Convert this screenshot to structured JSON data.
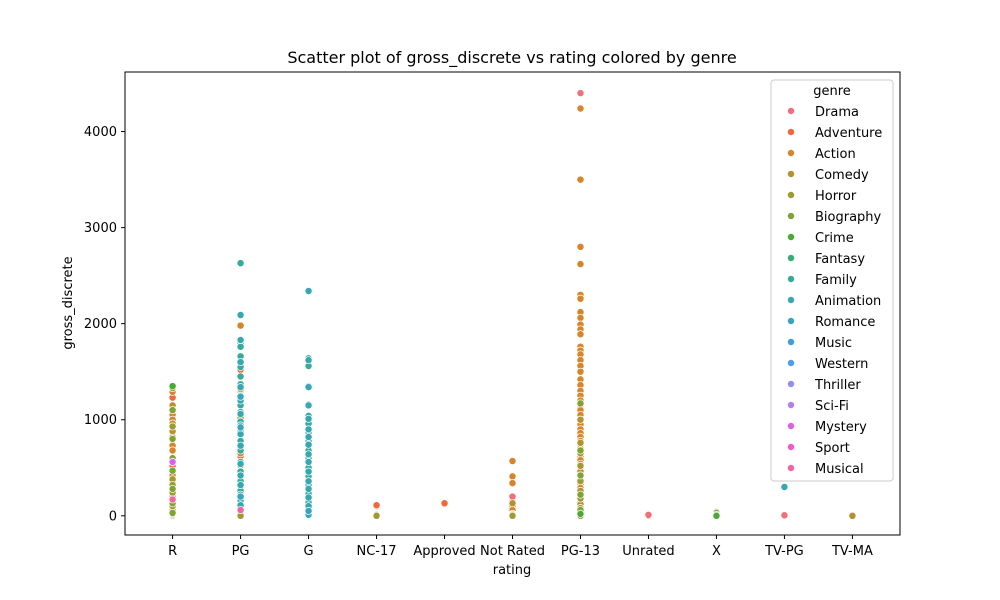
{
  "chart_data": {
    "type": "scatter",
    "title": "Scatter plot of gross_discrete vs rating colored by genre",
    "xlabel": "rating",
    "ylabel": "gross_discrete",
    "x_categories": [
      "R",
      "PG",
      "G",
      "NC-17",
      "Approved",
      "Not Rated",
      "PG-13",
      "Unrated",
      "X",
      "TV-PG",
      "TV-MA"
    ],
    "y_ticks": [
      0,
      1000,
      2000,
      3000,
      4000
    ],
    "ylim": [
      -200,
      4620
    ],
    "grid": false,
    "legend": {
      "title": "genre",
      "placement": "top-right",
      "entries": [
        {
          "name": "Drama",
          "color": "#f0707a"
        },
        {
          "name": "Adventure",
          "color": "#f0673d"
        },
        {
          "name": "Action",
          "color": "#d7842a"
        },
        {
          "name": "Comedy",
          "color": "#b6912d"
        },
        {
          "name": "Horror",
          "color": "#a09a31"
        },
        {
          "name": "Biography",
          "color": "#7ea432"
        },
        {
          "name": "Crime",
          "color": "#4aa935"
        },
        {
          "name": "Fantasy",
          "color": "#35ad77"
        },
        {
          "name": "Family",
          "color": "#36ab9b"
        },
        {
          "name": "Animation",
          "color": "#37a8b2"
        },
        {
          "name": "Romance",
          "color": "#39a4c0"
        },
        {
          "name": "Music",
          "color": "#3ca0d4"
        },
        {
          "name": "Western",
          "color": "#4e9df0"
        },
        {
          "name": "Thriller",
          "color": "#8f91ed"
        },
        {
          "name": "Sci-Fi",
          "color": "#b67ff0"
        },
        {
          "name": "Mystery",
          "color": "#dd60ec"
        },
        {
          "name": "Sport",
          "color": "#ee5acb"
        },
        {
          "name": "Musical",
          "color": "#f165a5"
        }
      ]
    },
    "series": [
      {
        "genre": "Drama",
        "points": [
          [
            "R",
            180
          ],
          [
            "R",
            600
          ],
          [
            "R",
            520
          ],
          [
            "R",
            440
          ],
          [
            "R",
            60
          ],
          [
            "PG",
            780
          ],
          [
            "PG",
            40
          ],
          [
            "PG",
            1380
          ],
          [
            "PG",
            700
          ],
          [
            "G",
            20
          ],
          [
            "NC-17",
            100
          ],
          [
            "Not Rated",
            150
          ],
          [
            "Not Rated",
            200
          ],
          [
            "PG-13",
            4400
          ],
          [
            "PG-13",
            840
          ],
          [
            "PG-13",
            400
          ],
          [
            "Unrated",
            0
          ],
          [
            "Unrated",
            10
          ],
          [
            "TV-PG",
            0
          ],
          [
            "TV-PG",
            5
          ]
        ]
      },
      {
        "genre": "Adventure",
        "points": [
          [
            "R",
            1230
          ],
          [
            "R",
            790
          ],
          [
            "R",
            520
          ],
          [
            "R",
            0
          ],
          [
            "PG",
            1330
          ],
          [
            "PG",
            1520
          ],
          [
            "PG",
            1300
          ],
          [
            "PG",
            620
          ],
          [
            "PG",
            450
          ],
          [
            "PG",
            300
          ],
          [
            "PG",
            150
          ],
          [
            "G",
            40
          ],
          [
            "NC-17",
            110
          ],
          [
            "Approved",
            130
          ],
          [
            "Not Rated",
            100
          ],
          [
            "PG-13",
            840
          ],
          [
            "PG-13",
            190
          ],
          [
            "PG-13",
            50
          ]
        ]
      },
      {
        "genre": "Action",
        "points": [
          [
            "R",
            1290
          ],
          [
            "R",
            1050
          ],
          [
            "R",
            1000
          ],
          [
            "R",
            820
          ],
          [
            "R",
            730
          ],
          [
            "R",
            680
          ],
          [
            "R",
            560
          ],
          [
            "R",
            420
          ],
          [
            "R",
            300
          ],
          [
            "R",
            250
          ],
          [
            "R",
            120
          ],
          [
            "R",
            40
          ],
          [
            "PG",
            1980
          ],
          [
            "PG",
            1320
          ],
          [
            "PG",
            1050
          ],
          [
            "PG",
            840
          ],
          [
            "PG",
            650
          ],
          [
            "PG",
            400
          ],
          [
            "PG",
            260
          ],
          [
            "G",
            40
          ],
          [
            "Not Rated",
            570
          ],
          [
            "Not Rated",
            410
          ],
          [
            "Not Rated",
            340
          ],
          [
            "Not Rated",
            60
          ],
          [
            "PG-13",
            4240
          ],
          [
            "PG-13",
            3500
          ],
          [
            "PG-13",
            2800
          ],
          [
            "PG-13",
            2620
          ],
          [
            "PG-13",
            2300
          ],
          [
            "PG-13",
            2260
          ],
          [
            "PG-13",
            2120
          ],
          [
            "PG-13",
            2060
          ],
          [
            "PG-13",
            1990
          ],
          [
            "PG-13",
            1940
          ],
          [
            "PG-13",
            1890
          ],
          [
            "PG-13",
            1760
          ],
          [
            "PG-13",
            1720
          ],
          [
            "PG-13",
            1680
          ],
          [
            "PG-13",
            1620
          ],
          [
            "PG-13",
            1560
          ],
          [
            "PG-13",
            1500
          ],
          [
            "PG-13",
            1420
          ],
          [
            "PG-13",
            1360
          ],
          [
            "PG-13",
            1300
          ],
          [
            "PG-13",
            1250
          ],
          [
            "PG-13",
            1200
          ],
          [
            "PG-13",
            1150
          ],
          [
            "PG-13",
            1100
          ],
          [
            "PG-13",
            1050
          ],
          [
            "PG-13",
            1000
          ],
          [
            "PG-13",
            950
          ],
          [
            "PG-13",
            900
          ],
          [
            "PG-13",
            860
          ],
          [
            "PG-13",
            820
          ],
          [
            "PG-13",
            780
          ],
          [
            "PG-13",
            740
          ],
          [
            "PG-13",
            700
          ],
          [
            "PG-13",
            660
          ],
          [
            "PG-13",
            620
          ],
          [
            "PG-13",
            580
          ],
          [
            "PG-13",
            540
          ],
          [
            "PG-13",
            500
          ],
          [
            "PG-13",
            460
          ],
          [
            "PG-13",
            420
          ],
          [
            "PG-13",
            380
          ],
          [
            "PG-13",
            330
          ],
          [
            "PG-13",
            290
          ],
          [
            "PG-13",
            240
          ],
          [
            "PG-13",
            200
          ],
          [
            "PG-13",
            150
          ],
          [
            "PG-13",
            100
          ]
        ]
      },
      {
        "genre": "Comedy",
        "points": [
          [
            "R",
            1150
          ],
          [
            "R",
            960
          ],
          [
            "R",
            880
          ],
          [
            "R",
            600
          ],
          [
            "R",
            350
          ],
          [
            "R",
            200
          ],
          [
            "R",
            60
          ],
          [
            "R",
            10
          ],
          [
            "PG",
            1180
          ],
          [
            "PG",
            1020
          ],
          [
            "PG",
            750
          ],
          [
            "PG",
            520
          ],
          [
            "PG",
            380
          ],
          [
            "PG",
            200
          ],
          [
            "PG",
            90
          ],
          [
            "G",
            10
          ],
          [
            "Not Rated",
            130
          ],
          [
            "Not Rated",
            20
          ],
          [
            "PG-13",
            1000
          ],
          [
            "PG-13",
            760
          ],
          [
            "PG-13",
            520
          ],
          [
            "PG-13",
            260
          ],
          [
            "PG-13",
            120
          ],
          [
            "PG-13",
            30
          ],
          [
            "TV-MA",
            0
          ]
        ]
      },
      {
        "genre": "Horror",
        "points": [
          [
            "R",
            930
          ],
          [
            "R",
            380
          ],
          [
            "R",
            320
          ],
          [
            "R",
            240
          ],
          [
            "R",
            150
          ],
          [
            "R",
            100
          ],
          [
            "R",
            20
          ],
          [
            "PG",
            20
          ],
          [
            "PG",
            0
          ],
          [
            "NC-17",
            10
          ],
          [
            "NC-17",
            0
          ],
          [
            "Not Rated",
            10
          ],
          [
            "Not Rated",
            0
          ],
          [
            "PG-13",
            650
          ],
          [
            "PG-13",
            520
          ],
          [
            "PG-13",
            360
          ],
          [
            "PG-13",
            180
          ],
          [
            "PG-13",
            80
          ],
          [
            "PG-13",
            20
          ],
          [
            "PG-13",
            0
          ],
          [
            "X",
            40
          ]
        ]
      },
      {
        "genre": "Biography",
        "points": [
          [
            "R",
            1330
          ],
          [
            "R",
            1100
          ],
          [
            "R",
            800
          ],
          [
            "R",
            600
          ],
          [
            "R",
            470
          ],
          [
            "R",
            280
          ],
          [
            "R",
            130
          ],
          [
            "R",
            30
          ],
          [
            "PG-13",
            1170
          ],
          [
            "PG-13",
            680
          ],
          [
            "PG-13",
            420
          ],
          [
            "PG-13",
            220
          ],
          [
            "PG-13",
            60
          ],
          [
            "X",
            30
          ]
        ]
      },
      {
        "genre": "Crime",
        "points": [
          [
            "R",
            1350
          ],
          [
            "PG-13",
            20
          ],
          [
            "X",
            10
          ],
          [
            "X",
            0
          ]
        ]
      },
      {
        "genre": "Family",
        "points": [
          [
            "PG",
            2630
          ],
          [
            "PG",
            1800
          ],
          [
            "PG",
            1760
          ],
          [
            "PG",
            1660
          ],
          [
            "PG",
            1550
          ],
          [
            "PG",
            1450
          ],
          [
            "PG",
            1370
          ],
          [
            "PG",
            1250
          ],
          [
            "PG",
            1150
          ],
          [
            "PG",
            1080
          ],
          [
            "PG",
            980
          ],
          [
            "PG",
            880
          ],
          [
            "PG",
            780
          ],
          [
            "PG",
            680
          ],
          [
            "PG",
            560
          ],
          [
            "PG",
            460
          ],
          [
            "PG",
            360
          ],
          [
            "PG",
            260
          ],
          [
            "PG",
            160
          ],
          [
            "PG",
            70
          ],
          [
            "G",
            1640
          ],
          [
            "G",
            1560
          ],
          [
            "G",
            1350
          ],
          [
            "G",
            1160
          ],
          [
            "G",
            1040
          ],
          [
            "G",
            960
          ],
          [
            "G",
            870
          ],
          [
            "G",
            780
          ],
          [
            "G",
            680
          ],
          [
            "G",
            600
          ],
          [
            "G",
            500
          ],
          [
            "G",
            410
          ],
          [
            "G",
            320
          ],
          [
            "G",
            230
          ],
          [
            "G",
            140
          ],
          [
            "G",
            60
          ],
          [
            "G",
            20
          ]
        ]
      },
      {
        "genre": "Animation",
        "points": [
          [
            "PG",
            2090
          ],
          [
            "PG",
            1830
          ],
          [
            "PG",
            1600
          ],
          [
            "PG",
            1340
          ],
          [
            "PG",
            1200
          ],
          [
            "PG",
            1060
          ],
          [
            "PG",
            940
          ],
          [
            "PG",
            850
          ],
          [
            "PG",
            730
          ],
          [
            "PG",
            540
          ],
          [
            "PG",
            420
          ],
          [
            "PG",
            320
          ],
          [
            "PG",
            220
          ],
          [
            "PG",
            110
          ],
          [
            "G",
            2340
          ],
          [
            "G",
            1620
          ],
          [
            "G",
            1340
          ],
          [
            "G",
            1150
          ],
          [
            "G",
            1010
          ],
          [
            "G",
            900
          ],
          [
            "G",
            820
          ],
          [
            "G",
            740
          ],
          [
            "G",
            640
          ],
          [
            "G",
            560
          ],
          [
            "G",
            460
          ],
          [
            "G",
            360
          ],
          [
            "G",
            280
          ],
          [
            "G",
            190
          ],
          [
            "G",
            100
          ],
          [
            "G",
            10
          ],
          [
            "TV-PG",
            300
          ]
        ]
      },
      {
        "genre": "Romance",
        "points": [
          [
            "PG",
            1240
          ],
          [
            "PG",
            920
          ],
          [
            "PG",
            200
          ],
          [
            "G",
            50
          ]
        ]
      },
      {
        "genre": "Mystery",
        "points": [
          [
            "R",
            560
          ]
        ]
      },
      {
        "genre": "Musical",
        "points": [
          [
            "R",
            170
          ],
          [
            "PG",
            60
          ]
        ]
      }
    ]
  }
}
